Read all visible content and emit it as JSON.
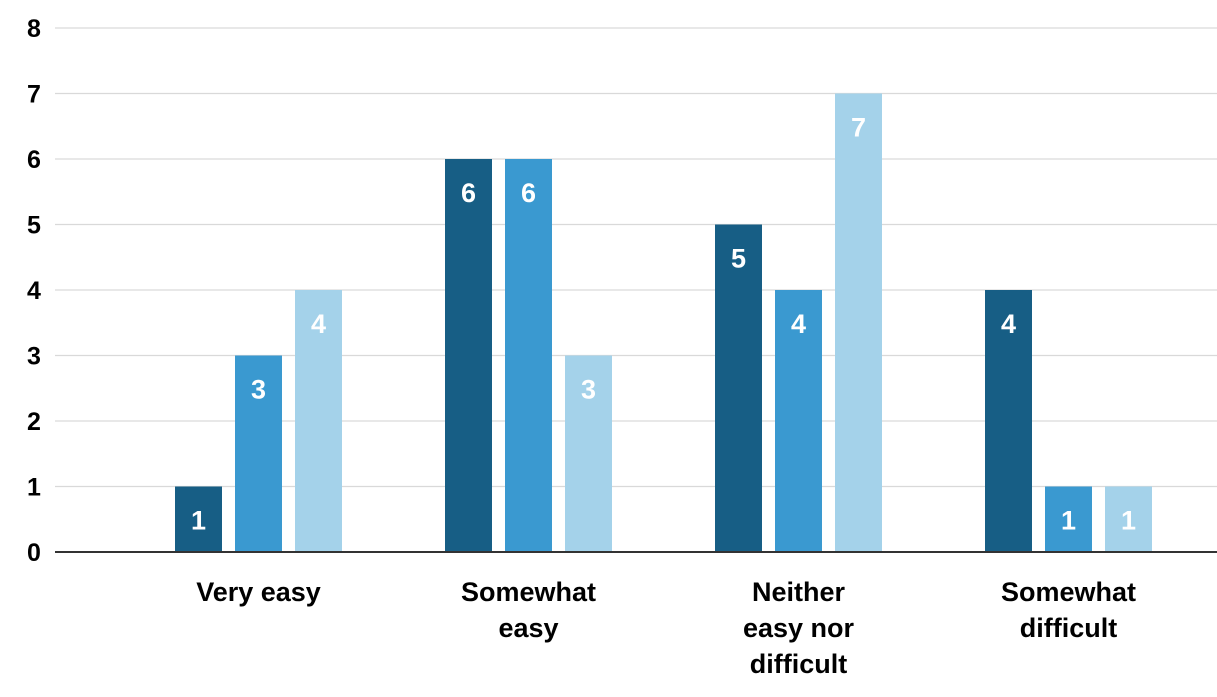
{
  "chart_data": {
    "type": "bar",
    "title": "",
    "xlabel": "",
    "ylabel": "",
    "ylim": [
      0,
      8
    ],
    "yticks": [
      0,
      1,
      2,
      3,
      4,
      5,
      6,
      7,
      8
    ],
    "grid": true,
    "legend": "none",
    "categories": [
      [
        "Very easy"
      ],
      [
        "Somewhat",
        "easy"
      ],
      [
        "Neither",
        "easy nor",
        "difficult"
      ],
      [
        "Somewhat",
        "difficult"
      ]
    ],
    "series": [
      {
        "color": "#175e85",
        "values": [
          1,
          6,
          5,
          4
        ]
      },
      {
        "color": "#3a99d0",
        "values": [
          3,
          6,
          4,
          1
        ]
      },
      {
        "color": "#a4d2ea",
        "values": [
          4,
          3,
          7,
          1
        ]
      }
    ],
    "data_labels": true
  }
}
